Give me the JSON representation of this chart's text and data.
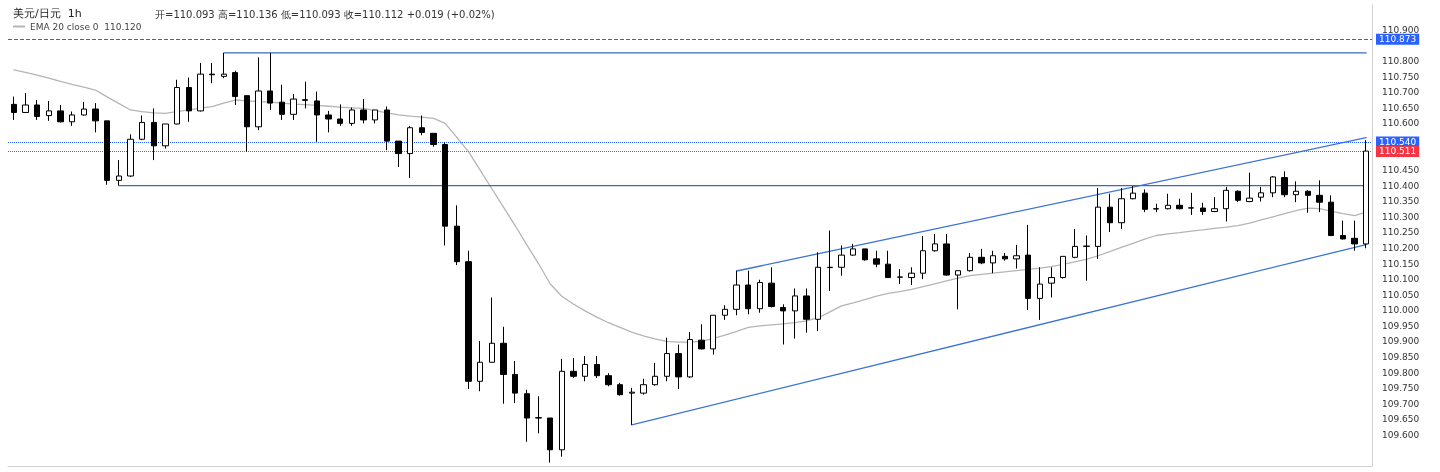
{
  "chart_data": {
    "type": "candlestick",
    "title": "美元/日元  1h",
    "subtitle": "开=110.093 高=110.136 低=110.093 收=110.112 +0.019 (+0.02%)",
    "categories": [
      null,
      null,
      null,
      null,
      null,
      null,
      null,
      null,
      null,
      null,
      null,
      null,
      null,
      null,
      null,
      null,
      null,
      null,
      null,
      null,
      null,
      null,
      null,
      null,
      null,
      null,
      null,
      null,
      null,
      null,
      null,
      null,
      null,
      null,
      null,
      null,
      null,
      null,
      null,
      null,
      null,
      null,
      null,
      null,
      null,
      null,
      null,
      null,
      null,
      null,
      null,
      null,
      null,
      null,
      null,
      null,
      null,
      null,
      null,
      null,
      null,
      null,
      null,
      null,
      null,
      null,
      null,
      null,
      null,
      null,
      null,
      null,
      null,
      null,
      null,
      null,
      null,
      null,
      null,
      null,
      null,
      null,
      null,
      null,
      null,
      null,
      null,
      null,
      null,
      null,
      null,
      null,
      null,
      null,
      null,
      null,
      null,
      null,
      null,
      null,
      null,
      null,
      null,
      null,
      null,
      null,
      null,
      null,
      null,
      null,
      null,
      null,
      null,
      null,
      null,
      null,
      null
    ],
    "color": "#000000",
    "ohlc": [
      [
        110.661,
        110.686,
        110.611,
        110.635
      ],
      [
        110.635,
        110.697,
        110.635,
        110.659
      ],
      [
        110.659,
        110.675,
        110.611,
        110.622
      ],
      [
        110.625,
        110.672,
        110.608,
        110.64
      ],
      [
        110.64,
        110.659,
        110.603,
        110.605
      ],
      [
        110.605,
        110.638,
        110.592,
        110.627
      ],
      [
        110.627,
        110.669,
        110.625,
        110.646
      ],
      [
        110.646,
        110.665,
        110.571,
        110.608
      ],
      [
        110.608,
        110.608,
        110.403,
        110.417
      ],
      [
        110.417,
        110.482,
        110.401,
        110.431
      ],
      [
        110.431,
        110.565,
        110.428,
        110.549
      ],
      [
        110.549,
        110.625,
        110.546,
        110.603
      ],
      [
        110.603,
        110.648,
        110.482,
        110.528
      ],
      [
        110.528,
        110.598,
        110.519,
        110.598
      ],
      [
        110.598,
        110.74,
        110.597,
        110.715
      ],
      [
        110.715,
        110.747,
        110.605,
        110.64
      ],
      [
        110.64,
        110.794,
        110.638,
        110.758
      ],
      [
        110.758,
        110.794,
        110.729,
        110.756
      ],
      [
        110.751,
        110.826,
        110.745,
        110.758
      ],
      [
        110.763,
        110.769,
        110.659,
        110.686
      ],
      [
        110.689,
        110.689,
        110.509,
        110.589
      ],
      [
        110.589,
        110.812,
        110.578,
        110.704
      ],
      [
        110.704,
        110.826,
        110.643,
        110.665
      ],
      [
        110.668,
        110.724,
        110.611,
        110.629
      ],
      [
        110.629,
        110.694,
        110.611,
        110.678
      ],
      [
        110.676,
        110.734,
        110.648,
        110.674
      ],
      [
        110.672,
        110.702,
        110.541,
        110.627
      ],
      [
        110.627,
        110.64,
        110.571,
        110.614
      ],
      [
        110.614,
        110.661,
        110.592,
        110.6
      ],
      [
        110.6,
        110.651,
        110.592,
        110.643
      ],
      [
        110.643,
        110.678,
        110.6,
        110.611
      ],
      [
        110.611,
        110.643,
        110.6,
        110.643
      ],
      [
        110.643,
        110.654,
        110.514,
        110.543
      ],
      [
        110.543,
        110.543,
        110.46,
        110.503
      ],
      [
        110.503,
        110.592,
        110.425,
        110.586
      ],
      [
        110.586,
        110.625,
        110.562,
        110.571
      ],
      [
        110.568,
        110.568,
        110.525,
        110.532
      ],
      [
        110.532,
        110.539,
        110.208,
        110.27
      ],
      [
        110.27,
        110.337,
        110.145,
        110.156
      ],
      [
        110.156,
        110.191,
        109.747,
        109.772
      ],
      [
        109.772,
        109.901,
        109.74,
        109.833
      ],
      [
        109.833,
        110.041,
        109.833,
        109.894
      ],
      [
        109.894,
        109.947,
        109.7,
        109.794
      ],
      [
        109.794,
        109.837,
        109.702,
        109.734
      ],
      [
        109.732,
        109.745,
        109.578,
        109.654
      ],
      [
        109.655,
        109.724,
        109.605,
        109.654
      ],
      [
        109.654,
        109.654,
        109.511,
        109.552
      ],
      [
        109.552,
        109.844,
        109.53,
        109.804
      ],
      [
        109.804,
        109.847,
        109.783,
        109.788
      ],
      [
        109.788,
        109.853,
        109.772,
        109.826
      ],
      [
        109.826,
        109.853,
        109.783,
        109.79
      ],
      [
        109.79,
        109.798,
        109.756,
        109.761
      ],
      [
        109.761,
        109.767,
        109.726,
        109.729
      ],
      [
        109.734,
        109.751,
        109.632,
        109.737
      ],
      [
        109.734,
        109.78,
        109.729,
        109.761
      ],
      [
        109.761,
        109.831,
        109.758,
        109.788
      ],
      [
        109.788,
        109.912,
        109.772,
        109.861
      ],
      [
        109.861,
        109.89,
        109.747,
        109.786
      ],
      [
        109.786,
        109.93,
        109.783,
        109.906
      ],
      [
        109.904,
        109.955,
        109.874,
        109.876
      ],
      [
        109.876,
        109.984,
        109.858,
        109.984
      ],
      [
        109.984,
        110.016,
        109.969,
        110.003
      ],
      [
        110.003,
        110.127,
        109.984,
        110.081
      ],
      [
        110.081,
        110.127,
        109.987,
        110.005
      ],
      [
        110.005,
        110.098,
        109.992,
        110.089
      ],
      [
        110.087,
        110.138,
        110.009,
        110.012
      ],
      [
        110.009,
        110.019,
        109.89,
        109.998
      ],
      [
        109.998,
        110.07,
        109.909,
        110.046
      ],
      [
        110.046,
        110.07,
        109.928,
        109.971
      ],
      [
        109.971,
        110.186,
        109.933,
        110.138
      ],
      [
        110.138,
        110.256,
        110.062,
        110.137
      ],
      [
        110.138,
        110.208,
        110.111,
        110.177
      ],
      [
        110.177,
        110.213,
        110.175,
        110.197
      ],
      [
        110.197,
        110.197,
        110.159,
        110.162
      ],
      [
        110.165,
        110.191,
        110.138,
        110.148
      ],
      [
        110.148,
        110.191,
        110.105,
        110.105
      ],
      [
        110.106,
        110.132,
        110.084,
        110.107
      ],
      [
        110.105,
        110.138,
        110.081,
        110.119
      ],
      [
        110.119,
        110.238,
        110.1,
        110.191
      ],
      [
        110.191,
        110.245,
        110.188,
        110.213
      ],
      [
        110.213,
        110.245,
        110.111,
        110.113
      ],
      [
        110.113,
        110.127,
        110.003,
        110.127
      ],
      [
        110.127,
        110.184,
        110.124,
        110.17
      ],
      [
        110.17,
        110.197,
        110.148,
        110.152
      ],
      [
        110.152,
        110.191,
        110.119,
        110.175
      ],
      [
        110.173,
        110.184,
        110.159,
        110.165
      ],
      [
        110.165,
        110.21,
        110.134,
        110.175
      ],
      [
        110.177,
        110.274,
        110.001,
        110.038
      ],
      [
        110.038,
        110.138,
        109.969,
        110.084
      ],
      [
        110.087,
        110.138,
        110.041,
        110.105
      ],
      [
        110.105,
        110.173,
        110.102,
        110.173
      ],
      [
        110.17,
        110.261,
        110.167,
        110.205
      ],
      [
        110.205,
        110.24,
        110.095,
        110.206
      ],
      [
        110.205,
        110.392,
        110.165,
        110.331
      ],
      [
        110.331,
        110.374,
        110.251,
        110.281
      ],
      [
        110.281,
        110.392,
        110.261,
        110.358
      ],
      [
        110.358,
        110.399,
        110.356,
        110.376
      ],
      [
        110.376,
        110.388,
        110.315,
        110.324
      ],
      [
        110.326,
        110.342,
        110.315,
        110.325
      ],
      [
        110.326,
        110.374,
        110.324,
        110.337
      ],
      [
        110.337,
        110.358,
        110.324,
        110.326
      ],
      [
        110.328,
        110.377,
        110.306,
        110.329
      ],
      [
        110.328,
        110.345,
        110.306,
        110.317
      ],
      [
        110.317,
        110.363,
        110.315,
        110.326
      ],
      [
        110.326,
        110.396,
        110.285,
        110.385
      ],
      [
        110.382,
        110.385,
        110.347,
        110.353
      ],
      [
        110.349,
        110.442,
        110.347,
        110.36
      ],
      [
        110.363,
        110.396,
        110.349,
        110.377
      ],
      [
        110.377,
        110.431,
        110.363,
        110.428
      ],
      [
        110.426,
        110.446,
        110.363,
        110.371
      ],
      [
        110.371,
        110.414,
        110.347,
        110.382
      ],
      [
        110.382,
        110.385,
        110.313,
        110.369
      ],
      [
        110.369,
        110.417,
        110.315,
        110.347
      ],
      [
        110.347,
        110.369,
        110.238,
        110.24
      ],
      [
        110.24,
        110.288,
        110.227,
        110.229
      ],
      [
        110.231,
        110.288,
        110.191,
        110.213
      ],
      [
        110.213,
        110.546,
        110.199,
        110.511
      ]
    ],
    "series": [
      {
        "type": "line",
        "name": "EMA 20 close 0  110.120",
        "color": "#b5b5b5",
        "values": [
          110.772,
          110.764,
          110.755,
          110.745,
          110.735,
          110.725,
          110.716,
          110.707,
          110.685,
          110.664,
          110.643,
          110.638,
          110.634,
          110.632,
          110.638,
          110.643,
          110.649,
          110.654,
          110.665,
          110.675,
          110.672,
          110.67,
          110.668,
          110.665,
          110.662,
          110.66,
          110.658,
          110.655,
          110.652,
          110.65,
          110.648,
          110.641,
          110.634,
          110.627,
          110.623,
          110.62,
          110.616,
          110.6,
          110.555,
          110.509,
          110.45,
          110.39,
          110.331,
          110.272,
          110.21,
          110.15,
          110.085,
          110.045,
          110.02,
          109.998,
          109.978,
          109.96,
          109.945,
          109.93,
          109.918,
          109.908,
          109.9,
          109.898,
          109.898,
          109.9,
          109.91,
          109.92,
          109.932,
          109.945,
          109.95,
          109.953,
          109.956,
          109.96,
          109.966,
          109.976,
          109.995,
          110.014,
          110.024,
          110.034,
          110.045,
          110.054,
          110.06,
          110.067,
          110.076,
          110.085,
          110.094,
          110.103,
          110.111,
          110.115,
          110.119,
          110.123,
          110.127,
          110.131,
          110.135,
          110.14,
          110.147,
          110.155,
          110.163,
          110.175,
          110.188,
          110.202,
          110.215,
          110.228,
          110.24,
          110.245,
          110.249,
          110.254,
          110.258,
          110.263,
          110.267,
          110.272,
          110.28,
          110.29,
          110.3,
          110.31,
          110.32,
          110.328,
          110.326,
          110.318,
          110.31,
          110.304,
          110.315
        ]
      },
      {
        "type": "line",
        "color": "#3d68b8",
        "values": [
          null,
          null,
          null,
          null,
          null,
          null,
          null,
          null,
          null,
          null,
          null,
          null,
          null,
          null,
          null,
          null,
          null,
          null,
          110.826,
          null,
          null,
          null,
          null,
          null,
          null,
          null,
          null,
          null,
          null,
          null,
          null,
          null,
          null,
          null,
          null,
          null,
          null,
          null,
          null,
          null,
          null,
          null,
          null,
          null,
          null,
          null,
          null,
          null,
          null,
          null,
          null,
          null,
          null,
          null,
          null,
          null,
          null,
          null,
          null,
          null,
          null,
          null,
          null,
          null,
          null,
          null,
          null,
          null,
          null,
          null,
          null,
          null,
          null,
          null,
          null,
          null,
          null,
          null,
          null,
          null,
          null,
          null,
          null,
          null,
          null,
          null,
          null,
          null,
          null,
          null,
          null,
          null,
          null,
          null,
          null,
          null,
          null,
          null,
          null,
          null,
          null,
          null,
          null,
          null,
          null,
          null,
          null,
          null,
          null,
          null,
          null,
          null,
          null,
          null,
          null,
          null,
          110.826
        ]
      },
      {
        "type": "line",
        "color": "#3d68b8",
        "values": [
          null,
          null,
          null,
          null,
          null,
          null,
          null,
          null,
          null,
          110.4,
          null,
          null,
          null,
          null,
          null,
          null,
          null,
          null,
          null,
          null,
          null,
          null,
          null,
          null,
          null,
          null,
          null,
          null,
          null,
          null,
          null,
          null,
          null,
          null,
          null,
          null,
          null,
          null,
          null,
          null,
          null,
          null,
          null,
          null,
          null,
          null,
          null,
          null,
          null,
          null,
          null,
          null,
          null,
          null,
          null,
          null,
          null,
          null,
          null,
          null,
          null,
          null,
          null,
          null,
          null,
          null,
          null,
          null,
          null,
          null,
          null,
          null,
          null,
          null,
          null,
          null,
          null,
          null,
          null,
          null,
          null,
          null,
          null,
          null,
          null,
          null,
          null,
          null,
          null,
          null,
          null,
          null,
          null,
          null,
          null,
          null,
          null,
          null,
          null,
          null,
          null,
          null,
          null,
          null,
          null,
          null,
          null,
          null,
          null,
          null,
          null,
          null,
          null,
          null,
          null,
          null,
          110.4
        ]
      },
      {
        "type": "line",
        "color": "#3c73d6",
        "values": [
          null,
          null,
          null,
          null,
          null,
          null,
          null,
          null,
          null,
          null,
          null,
          null,
          null,
          null,
          null,
          null,
          null,
          null,
          null,
          null,
          null,
          null,
          null,
          null,
          null,
          null,
          null,
          null,
          null,
          null,
          null,
          null,
          null,
          null,
          null,
          null,
          null,
          null,
          null,
          null,
          null,
          null,
          null,
          null,
          null,
          null,
          null,
          null,
          null,
          null,
          null,
          null,
          null,
          null,
          null,
          null,
          null,
          null,
          null,
          null,
          null,
          null,
          110.126,
          null,
          null,
          null,
          null,
          null,
          null,
          null,
          null,
          null,
          null,
          null,
          null,
          null,
          null,
          null,
          null,
          null,
          null,
          null,
          null,
          null,
          null,
          null,
          null,
          null,
          null,
          null,
          null,
          null,
          null,
          null,
          null,
          null,
          null,
          null,
          null,
          null,
          null,
          null,
          null,
          null,
          null,
          null,
          null,
          null,
          null,
          null,
          null,
          null,
          null,
          null,
          null,
          null,
          110.554
        ]
      },
      {
        "type": "line",
        "color": "#3c73d6",
        "values": [
          null,
          null,
          null,
          null,
          null,
          null,
          null,
          null,
          null,
          null,
          null,
          null,
          null,
          null,
          null,
          null,
          null,
          null,
          null,
          null,
          null,
          null,
          null,
          null,
          null,
          null,
          null,
          null,
          null,
          null,
          null,
          null,
          null,
          null,
          null,
          null,
          null,
          null,
          null,
          null,
          null,
          null,
          null,
          null,
          null,
          null,
          null,
          null,
          null,
          null,
          null,
          null,
          null,
          109.632,
          null,
          null,
          null,
          null,
          null,
          null,
          null,
          null,
          null,
          null,
          null,
          null,
          null,
          null,
          null,
          null,
          null,
          null,
          null,
          null,
          null,
          null,
          null,
          null,
          null,
          null,
          null,
          null,
          null,
          null,
          null,
          null,
          null,
          null,
          null,
          null,
          null,
          null,
          null,
          null,
          null,
          null,
          null,
          null,
          null,
          null,
          null,
          null,
          null,
          null,
          null,
          null,
          null,
          null,
          null,
          null,
          null,
          null,
          null,
          null,
          null,
          null,
          110.211
        ]
      }
    ],
    "ylim": [
      109.5,
      110.98
    ],
    "yticks": [
      {
        "value": 109.6,
        "label": "109.600"
      },
      {
        "value": 109.65,
        "label": "109.650"
      },
      {
        "value": 109.7,
        "label": "109.700"
      },
      {
        "value": 109.75,
        "label": "109.750"
      },
      {
        "value": 109.8,
        "label": "109.800"
      },
      {
        "value": 109.85,
        "label": "109.850"
      },
      {
        "value": 109.9,
        "label": "109.900"
      },
      {
        "value": 109.95,
        "label": "109.950"
      },
      {
        "value": 110.0,
        "label": "110.000"
      },
      {
        "value": 110.05,
        "label": "110.050"
      },
      {
        "value": 110.1,
        "label": "110.100"
      },
      {
        "value": 110.15,
        "label": "110.150"
      },
      {
        "value": 110.2,
        "label": "110.200"
      },
      {
        "value": 110.25,
        "label": "110.250"
      },
      {
        "value": 110.3,
        "label": "110.300"
      },
      {
        "value": 110.35,
        "label": "110.350"
      },
      {
        "value": 110.4,
        "label": "110.400"
      },
      {
        "value": 110.45,
        "label": "110.450"
      },
      {
        "value": 110.6,
        "label": "110.600"
      },
      {
        "value": 110.65,
        "label": "110.650"
      },
      {
        "value": 110.7,
        "label": "110.700"
      },
      {
        "value": 110.75,
        "label": "110.750"
      },
      {
        "value": 110.8,
        "label": "110.800"
      },
      {
        "value": 110.9,
        "label": "110.900"
      }
    ],
    "ref_lines": [
      {
        "axis": "y",
        "value": 110.873,
        "label": "110.873",
        "color": "#2962ff",
        "line_style": "dashed"
      },
      {
        "axis": "y",
        "value": 110.54,
        "label": "110.540",
        "color": "#2962ff",
        "line_style": "dotted"
      },
      {
        "axis": "y",
        "value": 110.511,
        "label": "110.511",
        "color": "#f23645",
        "line_style": "dotted"
      }
    ],
    "tick_labels": "y",
    "grid": false,
    "legend": "top left"
  }
}
